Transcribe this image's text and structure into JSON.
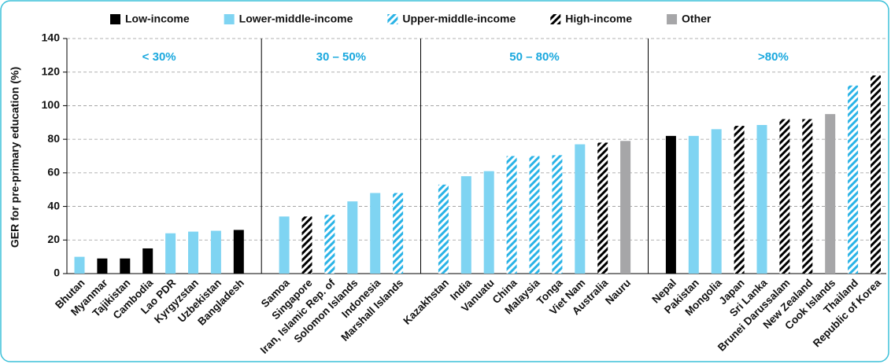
{
  "chart_data": {
    "type": "bar",
    "y_label": "GER for pre-primary education (%)",
    "ylim": [
      0,
      140
    ],
    "yticks": [
      0,
      20,
      40,
      60,
      80,
      100,
      120,
      140
    ],
    "grid": true,
    "panels": [
      {
        "label": "< 30%",
        "categories": [
          "Bhutan",
          "Myanmar",
          "Tajikistan",
          "Cambodia",
          "Lao PDR",
          "Kyrgyzstan",
          "Uzbekistan",
          "Bangladesh"
        ]
      },
      {
        "label": "30 – 50%",
        "categories": [
          "Samoa",
          "Singapore",
          "Iran, Islamic Rep. of",
          "Solomon Islands",
          "Indonesia",
          "Marshall Islands"
        ]
      },
      {
        "label": "50 – 80%",
        "categories": [
          "Kazakhstan",
          "India",
          "Vanuatu",
          "China",
          "Malaysia",
          "Tonga",
          "Viet Nam",
          "Australia",
          "Nauru"
        ]
      },
      {
        "label": ">80%",
        "categories": [
          "Nepal",
          "Pakistan",
          "Mongolia",
          "Japan",
          "Sri Lanka",
          "Brunei Darussalam",
          "New Zealand",
          "Cook Islands",
          "Thailand",
          "Republic of Korea"
        ]
      }
    ],
    "series": [
      {
        "name": "Low-income",
        "color": "#000000",
        "hatched": false,
        "values": [
          null,
          9,
          9,
          15,
          null,
          null,
          null,
          26,
          null,
          null,
          null,
          null,
          null,
          null,
          null,
          null,
          null,
          null,
          null,
          null,
          null,
          null,
          null,
          82,
          null,
          null,
          null,
          null,
          null,
          null,
          null,
          null,
          null
        ]
      },
      {
        "name": "Lower-middle-income",
        "color": "#7fd4f2",
        "hatched": false,
        "values": [
          10,
          null,
          null,
          null,
          24,
          25,
          25.5,
          null,
          34,
          null,
          null,
          43,
          48,
          null,
          null,
          58,
          61,
          null,
          null,
          null,
          77,
          null,
          null,
          null,
          82,
          86,
          null,
          88.5,
          null,
          null,
          null,
          null,
          null
        ]
      },
      {
        "name": "Upper-middle-income",
        "color": "#2ab3e6",
        "hatched": true,
        "values": [
          null,
          null,
          null,
          null,
          null,
          null,
          null,
          null,
          null,
          null,
          35,
          null,
          null,
          48,
          53,
          null,
          null,
          70,
          70,
          70.5,
          null,
          null,
          null,
          null,
          null,
          null,
          null,
          null,
          null,
          null,
          null,
          112,
          null
        ]
      },
      {
        "name": "High-income",
        "color": "#000000",
        "hatched": true,
        "values": [
          null,
          null,
          null,
          null,
          null,
          null,
          null,
          null,
          null,
          34,
          null,
          null,
          null,
          null,
          null,
          null,
          null,
          null,
          null,
          null,
          null,
          78,
          null,
          null,
          null,
          null,
          88,
          null,
          92,
          92,
          null,
          null,
          118
        ]
      },
      {
        "name": "Other",
        "color": "#a6a6a8",
        "hatched": false,
        "values": [
          null,
          null,
          null,
          null,
          null,
          null,
          null,
          null,
          null,
          null,
          null,
          null,
          null,
          null,
          null,
          null,
          null,
          null,
          null,
          null,
          null,
          null,
          79,
          null,
          null,
          null,
          null,
          null,
          null,
          null,
          95,
          null,
          null
        ]
      }
    ]
  }
}
